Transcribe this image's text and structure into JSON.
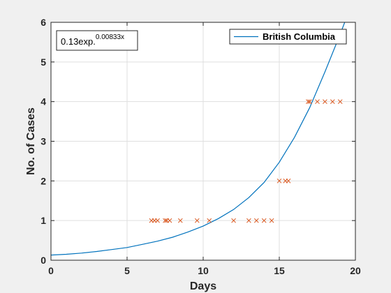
{
  "chart_data": {
    "type": "scatter",
    "xlabel": "Days",
    "ylabel": "No. of Cases",
    "xlim": [
      0,
      20
    ],
    "ylim": [
      0,
      6
    ],
    "xticks": [
      0,
      5,
      10,
      15,
      20
    ],
    "yticks": [
      0,
      1,
      2,
      3,
      4,
      5,
      6
    ],
    "xtick_labels": [
      "0",
      "5",
      "10",
      "15",
      "20"
    ],
    "ytick_labels": [
      "0",
      "1",
      "2",
      "3",
      "4",
      "5",
      "6"
    ],
    "grid": true,
    "legend": {
      "position": "top-right",
      "entries": [
        "British Columbia"
      ]
    },
    "annotation": {
      "base": "0.13exp.",
      "exponent": "0.00833x",
      "position": "top-left"
    },
    "series": [
      {
        "name": "British Columbia",
        "kind": "line",
        "color": "#0072bd",
        "x": [
          0,
          1,
          2,
          3,
          4,
          5,
          6,
          7,
          8,
          9,
          10,
          11,
          12,
          13,
          14,
          15,
          16,
          17,
          18,
          19,
          19.3
        ],
        "y": [
          0.13,
          0.15,
          0.18,
          0.22,
          0.27,
          0.32,
          0.4,
          0.48,
          0.58,
          0.71,
          0.86,
          1.05,
          1.28,
          1.58,
          1.96,
          2.47,
          3.1,
          3.85,
          4.75,
          5.7,
          6.0
        ]
      },
      {
        "kind": "scatter",
        "marker": "x",
        "color": "#d95319",
        "x": [
          6.6,
          6.8,
          7.0,
          7.5,
          7.6,
          7.8,
          8.5,
          9.6,
          10.4,
          12.0,
          13.0,
          13.5,
          14.0,
          14.5,
          15.0,
          15.4,
          15.6,
          16.9,
          17.0,
          17.5,
          18.0,
          18.5,
          19.0
        ],
        "y": [
          1,
          1,
          1,
          1,
          1,
          1,
          1,
          1,
          1,
          1,
          1,
          1,
          1,
          1,
          2,
          2,
          2,
          4,
          4,
          4,
          4,
          4,
          4
        ]
      }
    ]
  }
}
